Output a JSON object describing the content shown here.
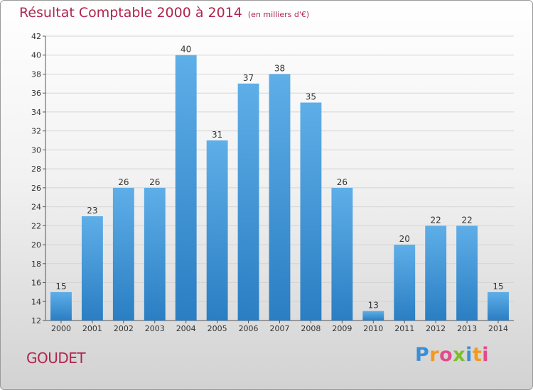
{
  "title": {
    "main": "Résultat Comptable 2000 à 2014",
    "unit": "(en milliers d'€)"
  },
  "location": "GOUDET",
  "brand": {
    "letters": [
      "P",
      "r",
      "o",
      "x",
      "i",
      "t",
      "i"
    ],
    "colors": [
      "#3a8fd6",
      "#f39a1e",
      "#e34a8c",
      "#7bbf2a",
      "#3a8fd6",
      "#f39a1e",
      "#e34a8c"
    ]
  },
  "chart_data": {
    "type": "bar",
    "title": "Résultat Comptable 2000 à 2014",
    "ylabel": "en milliers d'€",
    "xlabel": "",
    "categories": [
      "2000",
      "2001",
      "2002",
      "2003",
      "2004",
      "2005",
      "2006",
      "2007",
      "2008",
      "2009",
      "2010",
      "2011",
      "2012",
      "2013",
      "2014"
    ],
    "values": [
      15,
      23,
      26,
      26,
      40,
      31,
      37,
      38,
      35,
      26,
      13,
      20,
      22,
      22,
      15
    ],
    "ylim": [
      12,
      42
    ],
    "yticks": [
      12,
      14,
      16,
      18,
      20,
      22,
      24,
      26,
      28,
      30,
      32,
      34,
      36,
      38,
      40,
      42
    ],
    "grid": true,
    "bar_color_top": "#5eaee8",
    "bar_color_bottom": "#2a7ec2",
    "grid_color": "#d4d4d4",
    "axis_color": "#555555"
  }
}
